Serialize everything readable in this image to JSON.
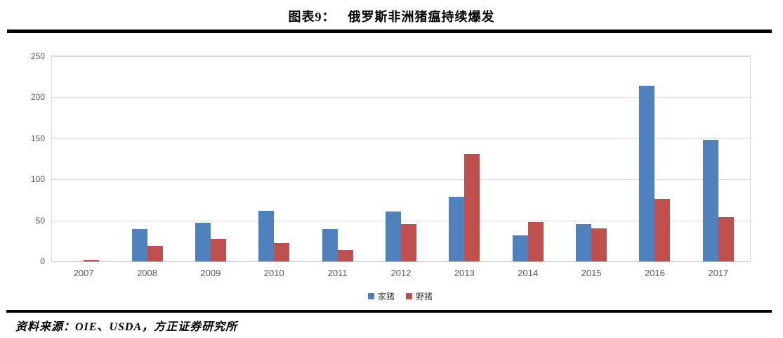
{
  "header": {
    "figure_label": "图表9：",
    "title": "俄罗斯非洲猪瘟持续爆发"
  },
  "footer": {
    "source": "资料来源：OIE、USDA，方正证券研究所"
  },
  "chart_data": {
    "type": "bar",
    "title": "俄罗斯非洲猪瘟持续爆发",
    "figure_label": "图表9：",
    "categories": [
      "2007",
      "2008",
      "2009",
      "2010",
      "2011",
      "2012",
      "2013",
      "2014",
      "2015",
      "2016",
      "2017"
    ],
    "series": [
      {
        "name": "家猪",
        "color": "#4F81BD",
        "values": [
          0,
          39,
          47,
          62,
          39,
          61,
          79,
          32,
          45,
          214,
          148
        ]
      },
      {
        "name": "野猪",
        "color": "#C0504D",
        "values": [
          2,
          19,
          27,
          22,
          14,
          45,
          131,
          48,
          40,
          76,
          54
        ]
      }
    ],
    "xlabel": "",
    "ylabel": "",
    "ylim": [
      0,
      250
    ],
    "yticks": [
      0,
      50,
      100,
      150,
      200,
      250
    ],
    "grid": true,
    "legend_position": "bottom",
    "colors": {
      "gridline": "#d9d9d9",
      "axis_line": "#bfbfbf",
      "tick_text": "#595959",
      "rule": "#000000"
    }
  }
}
